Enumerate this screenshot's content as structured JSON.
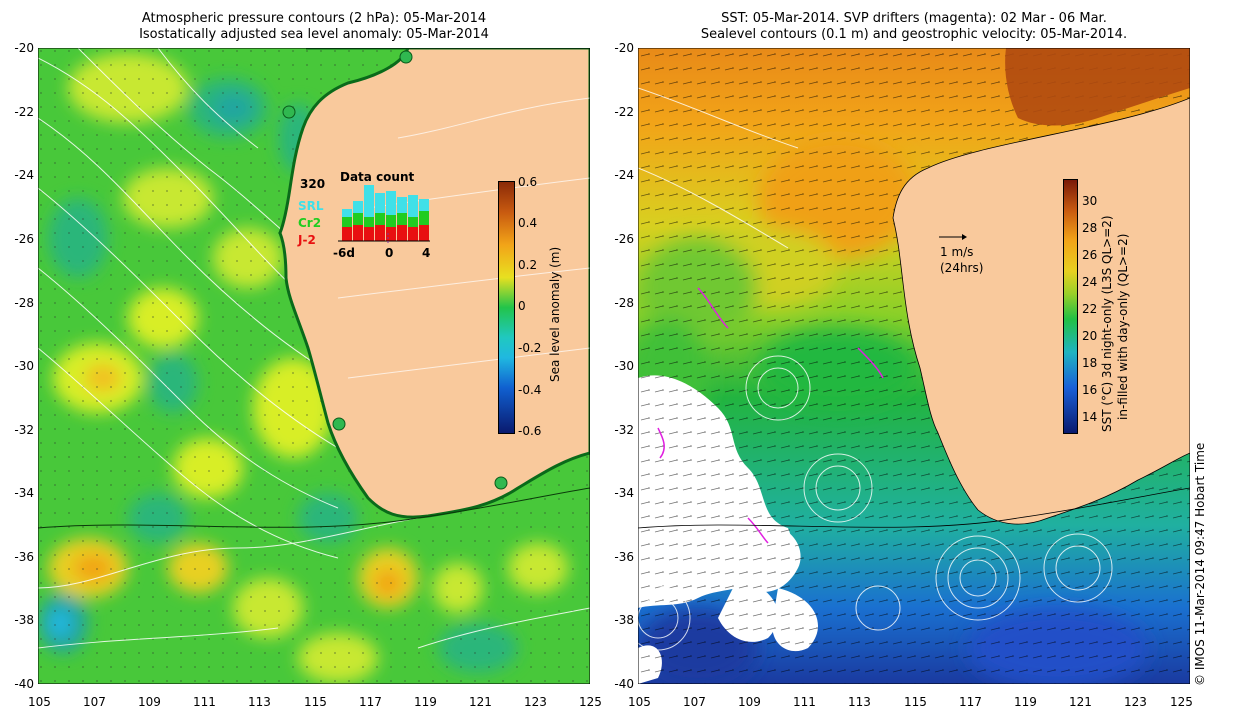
{
  "left_panel": {
    "title_line1": "Atmospheric pressure contours (2 hPa): 05-Mar-2014",
    "title_line2": "Isostatically adjusted sea level anomaly: 05-Mar-2014",
    "colorbar": {
      "label": "Sea level anomaly (m)",
      "ticks": [
        "0.6",
        "0.4",
        "0.2",
        "0",
        "-0.2",
        "-0.4",
        "-0.6"
      ]
    },
    "inset": {
      "title": "Data count",
      "max_label": "320",
      "legend": [
        {
          "name": "SRL",
          "color": "#40e0e8"
        },
        {
          "name": "Cr2",
          "color": "#20cc20"
        },
        {
          "name": "J-2",
          "color": "#e81010"
        }
      ],
      "x_ticks": [
        "-6d",
        "0",
        "4"
      ]
    }
  },
  "right_panel": {
    "title_line1": "SST: 05-Mar-2014. SVP drifters (magenta): 02 Mar - 06 Mar.",
    "title_line2": "Sealevel contours (0.1 m) and geostrophic velocity: 05-Mar-2014.",
    "scale_arrow_label1": "1 m/s",
    "scale_arrow_label2": "(24hrs)",
    "colorbar": {
      "label_line1": "SST (°C) 3d night-only (L3S QL>=2)",
      "label_line2": "in-filled with day-only (QL>=2)",
      "ticks": [
        "30",
        "28",
        "26",
        "24",
        "22",
        "20",
        "18",
        "16",
        "14"
      ]
    }
  },
  "axes": {
    "y_ticks": [
      "-20",
      "-22",
      "-24",
      "-26",
      "-28",
      "-30",
      "-32",
      "-34",
      "-36",
      "-38",
      "-40"
    ],
    "x_ticks": [
      "105",
      "107",
      "109",
      "111",
      "113",
      "115",
      "117",
      "119",
      "121",
      "123",
      "125"
    ]
  },
  "credit": "© IMOS 11-Mar-2014 09:47 Hobart Time",
  "colors": {
    "land": "#f9c99c",
    "sla_scale": [
      "#0a1a6e",
      "#1060d0",
      "#20b8e0",
      "#22c44a",
      "#d8ee28",
      "#f2a418",
      "#8a2a08"
    ],
    "sst_scale": [
      "#0a1a6e",
      "#1a60d8",
      "#20b4c0",
      "#22c044",
      "#cce020",
      "#f0a418",
      "#8a2a08"
    ]
  }
}
